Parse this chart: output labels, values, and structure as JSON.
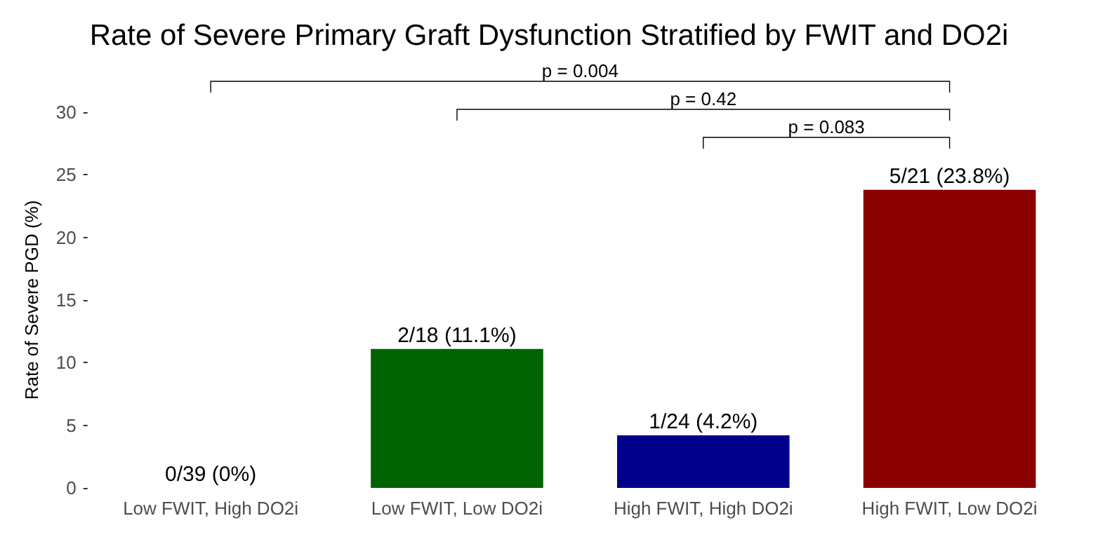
{
  "chart_data": {
    "type": "bar",
    "title": "Rate of Severe Primary Graft Dysfunction Stratified by FWIT and DO2i",
    "ylabel": "Rate of Severe PGD (%)",
    "categories": [
      "Low FWIT, High DO2i",
      "Low FWIT, Low DO2i",
      "High FWIT, High DO2i",
      "High FWIT, Low DO2i"
    ],
    "values": [
      0,
      11.1,
      4.2,
      23.8
    ],
    "colors": [
      "#808080",
      "#006400",
      "#00008b",
      "#8b0000"
    ],
    "value_labels": [
      "0/39 (0%)",
      "2/18 (11.1%)",
      "1/24 (4.2%)",
      "5/21 (23.8%)"
    ],
    "annotations": [
      "p = 0.004",
      "p = 0.42",
      "p = 0.083"
    ],
    "ylim": [
      0,
      30
    ],
    "yticks": [
      0,
      5,
      10,
      15,
      20,
      25,
      30
    ],
    "grid": false
  }
}
